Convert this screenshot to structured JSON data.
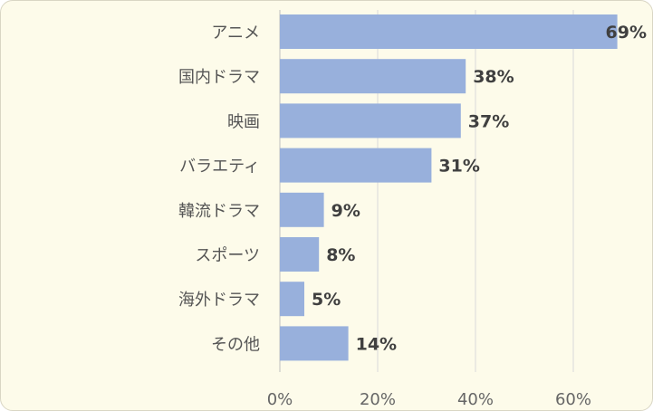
{
  "chart_data": {
    "type": "bar",
    "orientation": "horizontal",
    "categories": [
      "アニメ",
      "国内ドラマ",
      "映画",
      "バラエティ",
      "韓流ドラマ",
      "スポーツ",
      "海外ドラマ",
      "その他"
    ],
    "values": [
      69,
      38,
      37,
      31,
      9,
      8,
      5,
      14
    ],
    "data_labels": [
      "69%",
      "38%",
      "37%",
      "31%",
      "9%",
      "8%",
      "5%",
      "14%"
    ],
    "x_ticks": [
      "0%",
      "20%",
      "40%",
      "60%"
    ],
    "xlim": [
      0,
      75
    ],
    "grid": true,
    "bar_color": "#98b0dc",
    "title": "",
    "xlabel": "",
    "ylabel": ""
  }
}
